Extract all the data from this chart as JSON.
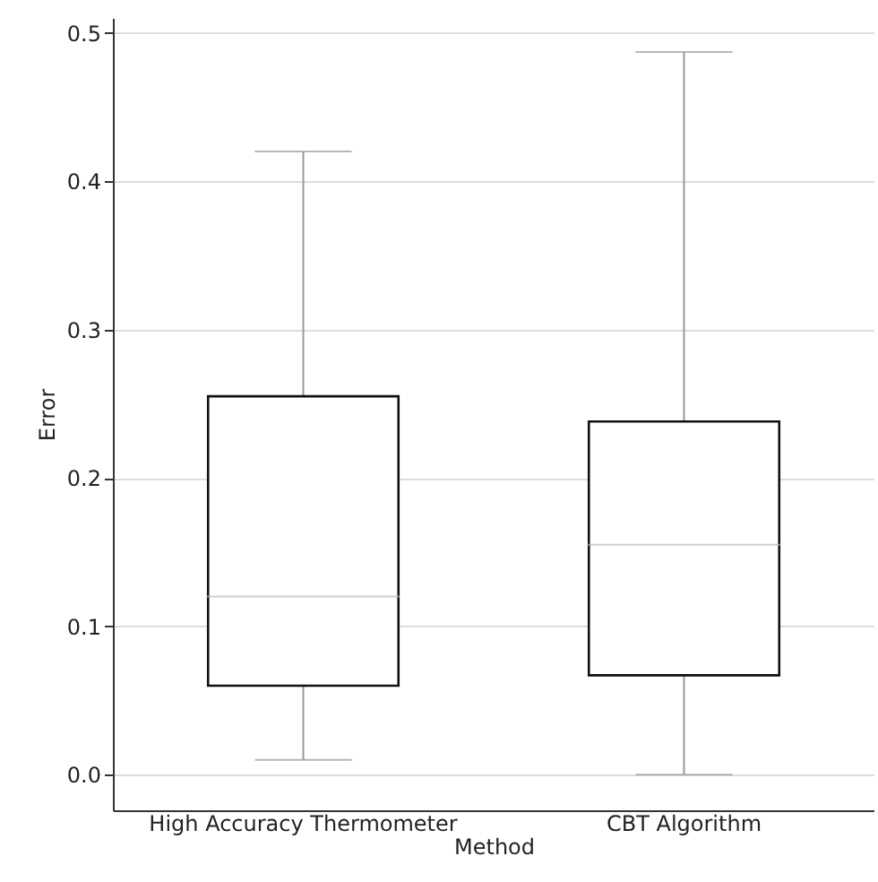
{
  "chart_data": {
    "type": "box",
    "xlabel": "Method",
    "ylabel": "Error",
    "categories": [
      "High Accuracy Thermometer",
      "CBT Algorithm"
    ],
    "boxes": [
      {
        "low": 0.01,
        "q1": 0.06,
        "median": 0.12,
        "q3": 0.255,
        "high": 0.42
      },
      {
        "low": 0.0,
        "q1": 0.067,
        "median": 0.155,
        "q3": 0.238,
        "high": 0.487
      }
    ],
    "ylim": [
      -0.024,
      0.51
    ],
    "yticks": [
      {
        "value": 0,
        "label": "0.0"
      },
      0.1,
      0.2,
      0.3,
      0.4,
      0.5
    ],
    "grid": "y"
  }
}
